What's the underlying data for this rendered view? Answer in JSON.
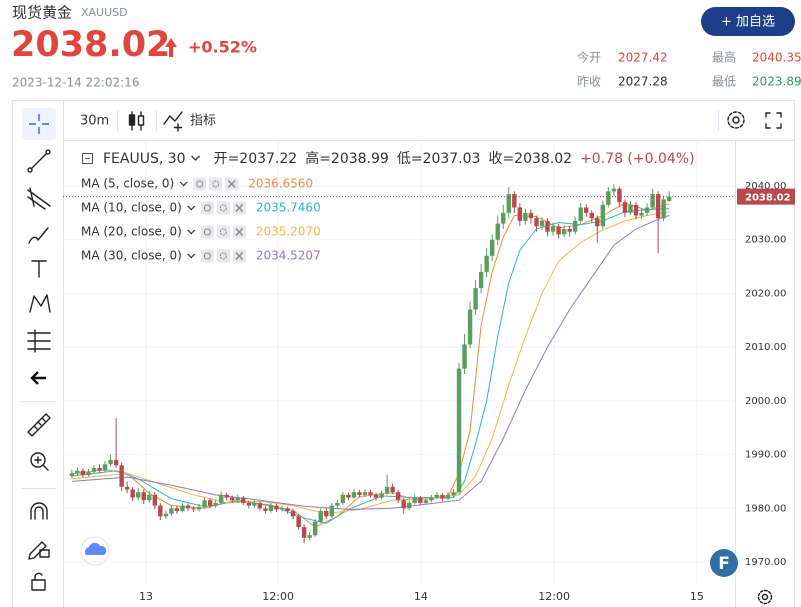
{
  "header": {
    "name": "现货黄金",
    "symbol": "XAUUSD",
    "button": "+ 加自选"
  },
  "quote": {
    "price": "2038.02",
    "change": "+0.52%",
    "time": "2023-12-14 22:02:16",
    "stats": [
      {
        "label": "今开",
        "value": "2027.42"
      },
      {
        "label": "最高",
        "value": "2040.35"
      },
      {
        "label": "昨收",
        "value": "2027.28"
      },
      {
        "label": "最低",
        "value": "2023.89"
      }
    ]
  },
  "toolbar": {
    "interval": "30m",
    "indicators": "指标"
  },
  "legend": {
    "symbol": "FEAUUS, 30",
    "ohlc": [
      "开=2037.22",
      "高=2038.99",
      "低=2037.03",
      "收=2038.02"
    ],
    "change": "+0.78 (+0.04%)"
  },
  "chart_data": {
    "type": "candlestick",
    "up_color": "#5a9e5e",
    "down_color": "#b84a4e",
    "grid": true,
    "open": [
      1986.0,
      1986.5,
      1987.0,
      1986.2,
      1986.8,
      1987.5,
      1987.0,
      1988.2,
      1989.0,
      1988.0,
      1984.0,
      1983.5,
      1982.0,
      1983.0,
      1981.5,
      1982.5,
      1980.5,
      1978.5,
      1979.0,
      1980.0,
      1979.5,
      1980.5,
      1980.0,
      1979.8,
      1980.2,
      1981.5,
      1980.5,
      1981.0,
      1982.5,
      1982.0,
      1981.5,
      1982.0,
      1981.0,
      1980.5,
      1981.0,
      1980.0,
      1979.5,
      1980.5,
      1979.8,
      1980.0,
      1979.5,
      1978.5,
      1976.5,
      1974.5,
      1975.0,
      1977.5,
      1979.5,
      1978.5,
      1980.5,
      1981.0,
      1982.5,
      1982.0,
      1983.0,
      1982.5,
      1983.0,
      1982.5,
      1982.0,
      1982.8,
      1984.0,
      1983.0,
      1981.5,
      1980.0,
      1981.0,
      1982.0,
      1981.0,
      1981.5,
      1982.0,
      1982.5,
      1981.8,
      1982.5,
      1983.0,
      2006.0,
      2010.5,
      2017.0,
      2021.0,
      2024.0,
      2027.0,
      2030.0,
      2033.0,
      2035.0,
      2038.5,
      2036.0,
      2033.5,
      2035.0,
      2034.0,
      2032.5,
      2033.5,
      2031.5,
      2032.5,
      2031.0,
      2032.0,
      2031.5,
      2033.5,
      2036.0,
      2035.0,
      2034.0,
      2032.5,
      2036.5,
      2039.0,
      2039.5,
      2037.0,
      2035.0,
      2036.5,
      2034.5,
      2035.0,
      2036.0,
      2038.5,
      2034.0,
      2037.22
    ],
    "high": [
      1987.2,
      1987.6,
      1987.4,
      1987.3,
      1988.0,
      1988.2,
      1988.8,
      1990.0,
      1996.8,
      1988.5,
      1985.0,
      1984.0,
      1983.8,
      1983.5,
      1983.2,
      1983.0,
      1981.0,
      1979.6,
      1980.6,
      1980.5,
      1981.0,
      1980.9,
      1980.4,
      1980.8,
      1982.0,
      1981.9,
      1981.6,
      1983.1,
      1982.9,
      1982.4,
      1982.6,
      1982.3,
      1981.4,
      1981.5,
      1981.3,
      1980.4,
      1981.0,
      1980.8,
      1980.5,
      1980.3,
      1979.9,
      1978.9,
      1977.0,
      1975.6,
      1978.0,
      1980.0,
      1980.0,
      1981.0,
      1981.6,
      1983.0,
      1982.9,
      1983.6,
      1983.4,
      1983.5,
      1983.4,
      1982.9,
      1983.3,
      1986.3,
      1984.6,
      1983.4,
      1981.9,
      1981.5,
      1982.6,
      1982.3,
      1982.0,
      1982.5,
      1983.0,
      1982.8,
      1983.0,
      1983.6,
      2007.0,
      2012.5,
      2018.5,
      2022.5,
      2025.5,
      2028.5,
      2031.0,
      2034.5,
      2036.5,
      2039.8,
      2039.0,
      2036.8,
      2035.8,
      2035.6,
      2034.5,
      2034.2,
      2034.0,
      2033.2,
      2033.0,
      2032.7,
      2032.6,
      2034.3,
      2036.8,
      2036.6,
      2035.5,
      2034.5,
      2037.3,
      2039.8,
      2040.3,
      2039.9,
      2037.5,
      2037.2,
      2037.0,
      2035.8,
      2036.8,
      2039.5,
      2039.0,
      2038.2,
      2038.99
    ],
    "low": [
      1985.6,
      1986.0,
      1985.8,
      1985.9,
      1986.4,
      1986.6,
      1986.7,
      1987.8,
      1987.5,
      1983.2,
      1982.8,
      1981.3,
      1981.5,
      1980.8,
      1981.0,
      1979.8,
      1977.8,
      1978.0,
      1978.6,
      1979.0,
      1979.2,
      1979.5,
      1979.3,
      1979.4,
      1980.0,
      1980.0,
      1980.1,
      1980.7,
      1981.5,
      1981.0,
      1981.1,
      1980.6,
      1980.0,
      1980.1,
      1979.6,
      1979.0,
      1979.2,
      1979.3,
      1979.4,
      1979.0,
      1978.0,
      1976.0,
      1973.5,
      1974.0,
      1974.7,
      1977.2,
      1978.0,
      1978.2,
      1980.1,
      1980.7,
      1981.5,
      1981.7,
      1982.0,
      1982.1,
      1982.0,
      1981.5,
      1981.7,
      1982.5,
      1982.6,
      1981.0,
      1979.0,
      1979.6,
      1980.7,
      1980.6,
      1980.7,
      1981.1,
      1981.7,
      1981.3,
      1981.4,
      1982.0,
      1982.6,
      2005.0,
      2009.8,
      2016.0,
      2020.0,
      2023.0,
      2026.0,
      2029.0,
      2032.0,
      2034.0,
      2035.0,
      2032.5,
      2032.8,
      2033.0,
      2031.5,
      2031.8,
      2030.6,
      2030.8,
      2030.2,
      2030.5,
      2030.6,
      2031.0,
      2033.0,
      2034.3,
      2033.2,
      2029.5,
      2032.0,
      2036.0,
      2038.2,
      2036.2,
      2034.2,
      2034.6,
      2033.8,
      2033.9,
      2034.4,
      2035.6,
      2027.5,
      2033.5,
      2037.03
    ],
    "close": [
      1986.5,
      1987.0,
      1986.2,
      1986.8,
      1987.5,
      1987.0,
      1988.2,
      1989.0,
      1988.0,
      1984.0,
      1983.5,
      1982.0,
      1983.0,
      1981.5,
      1982.5,
      1980.5,
      1978.5,
      1979.0,
      1980.0,
      1979.5,
      1980.5,
      1980.0,
      1979.8,
      1980.2,
      1981.5,
      1980.5,
      1981.0,
      1982.5,
      1982.0,
      1981.5,
      1982.0,
      1981.0,
      1980.5,
      1981.0,
      1980.0,
      1979.5,
      1980.5,
      1979.8,
      1980.0,
      1979.5,
      1978.5,
      1976.5,
      1974.5,
      1975.0,
      1977.5,
      1979.5,
      1978.5,
      1980.5,
      1981.0,
      1982.5,
      1982.0,
      1983.0,
      1982.5,
      1983.0,
      1982.5,
      1982.0,
      1982.8,
      1984.0,
      1983.0,
      1981.5,
      1980.0,
      1981.0,
      1982.0,
      1981.0,
      1981.5,
      1982.0,
      1982.5,
      1981.8,
      1982.5,
      1983.0,
      2006.0,
      2010.5,
      2017.0,
      2021.0,
      2024.0,
      2027.0,
      2030.0,
      2033.0,
      2035.0,
      2038.5,
      2036.0,
      2033.5,
      2035.0,
      2034.0,
      2032.5,
      2033.5,
      2031.5,
      2032.5,
      2031.0,
      2032.0,
      2031.5,
      2033.5,
      2036.0,
      2035.0,
      2034.0,
      2032.5,
      2036.5,
      2039.0,
      2039.5,
      2037.0,
      2035.0,
      2036.5,
      2034.5,
      2035.0,
      2036.0,
      2038.5,
      2034.0,
      2037.5,
      2038.02
    ],
    "xlim": [
      -1.6,
      119.9
    ],
    "xticks": [
      {
        "value": 13.4,
        "label": "13"
      },
      {
        "value": 37.3,
        "label": "12:00"
      },
      {
        "value": 63.1,
        "label": "14"
      },
      {
        "value": 87.2,
        "label": "12:00"
      },
      {
        "value": 113.0,
        "label": "15"
      }
    ],
    "ylim": [
      1966.28,
      2048.19
    ],
    "yticks": [
      {
        "value": 1970,
        "label": "1970.00"
      },
      {
        "value": 1980,
        "label": "1980.00"
      },
      {
        "value": 1990,
        "label": "1990.00"
      },
      {
        "value": 2000,
        "label": "2000.00"
      },
      {
        "value": 2010,
        "label": "2010.00"
      },
      {
        "value": 2020,
        "label": "2020.00"
      },
      {
        "value": 2030,
        "label": "2030.00"
      },
      {
        "value": 2040,
        "label": "2040.00"
      }
    ],
    "series": [
      {
        "name": "MA (5, close, 0)",
        "color": "#f08a3c",
        "last_value_label": "2036.6560",
        "x": [
          0,
          6,
          10,
          14,
          18,
          24,
          30,
          36,
          40,
          44,
          48,
          52,
          58,
          62,
          68,
          70,
          72,
          74,
          76,
          78,
          80,
          84,
          88,
          92,
          96,
          100,
          104,
          108
        ],
        "values": [
          1986.4,
          1987.2,
          1986.5,
          1982.8,
          1980.5,
          1980.0,
          1981.6,
          1980.4,
          1979.6,
          1976.5,
          1978.5,
          1982.2,
          1982.9,
          1981.5,
          1982.2,
          1986.5,
          1994.5,
          2014,
          2024,
          2030.5,
          2034.5,
          2034.3,
          2032.2,
          2032.8,
          2034.5,
          2036.8,
          2035.5,
          2036.656
        ]
      },
      {
        "name": "MA (10, close, 0)",
        "color": "#2fb5c7",
        "last_value_label": "2035.7460",
        "x": [
          0,
          8,
          12,
          18,
          24,
          30,
          36,
          42,
          46,
          50,
          56,
          62,
          69,
          71,
          73,
          75,
          77,
          79,
          81,
          84,
          88,
          92,
          96,
          100,
          104,
          108
        ],
        "values": [
          1986.0,
          1987.0,
          1985.5,
          1981.8,
          1980.3,
          1981.3,
          1980.6,
          1978.2,
          1977.2,
          1979.8,
          1982.3,
          1982.0,
          1982.0,
          1985,
          1992,
          2000,
          2012,
          2022,
          2028,
          2032,
          2033.2,
          2032.8,
          2033.5,
          2035.2,
          2035.6,
          2035.746
        ]
      },
      {
        "name": "MA (20, close, 0)",
        "color": "#f5b64a",
        "last_value_label": "2035.2070",
        "x": [
          0,
          10,
          16,
          22,
          28,
          34,
          40,
          46,
          52,
          58,
          64,
          70,
          73,
          76,
          79,
          82,
          85,
          88,
          92,
          96,
          100,
          104,
          108
        ],
        "values": [
          1985.5,
          1986.5,
          1984.5,
          1982.5,
          1981.0,
          1981.3,
          1980.5,
          1979.0,
          1979.8,
          1981.5,
          1981.8,
          1982.5,
          1986,
          1993,
          2003,
          2012,
          2020,
          2026,
          2029.5,
          2031.8,
          2033.5,
          2034.5,
          2035.207
        ]
      },
      {
        "name": "MA (30, close, 0)",
        "color": "#9378c9",
        "last_value_label": "2034.5207",
        "x": [
          0,
          10,
          18,
          26,
          34,
          42,
          50,
          58,
          66,
          70,
          74,
          78,
          82,
          86,
          90,
          94,
          98,
          102,
          106,
          108
        ],
        "values": [
          1985.0,
          1985.8,
          1984.3,
          1982.5,
          1981.5,
          1980.4,
          1979.8,
          1980.0,
          1981.0,
          1981.5,
          1985,
          1993,
          2002,
          2010,
          2017,
          2023,
          2029,
          2032,
          2033.8,
          2034.5207
        ]
      }
    ]
  }
}
